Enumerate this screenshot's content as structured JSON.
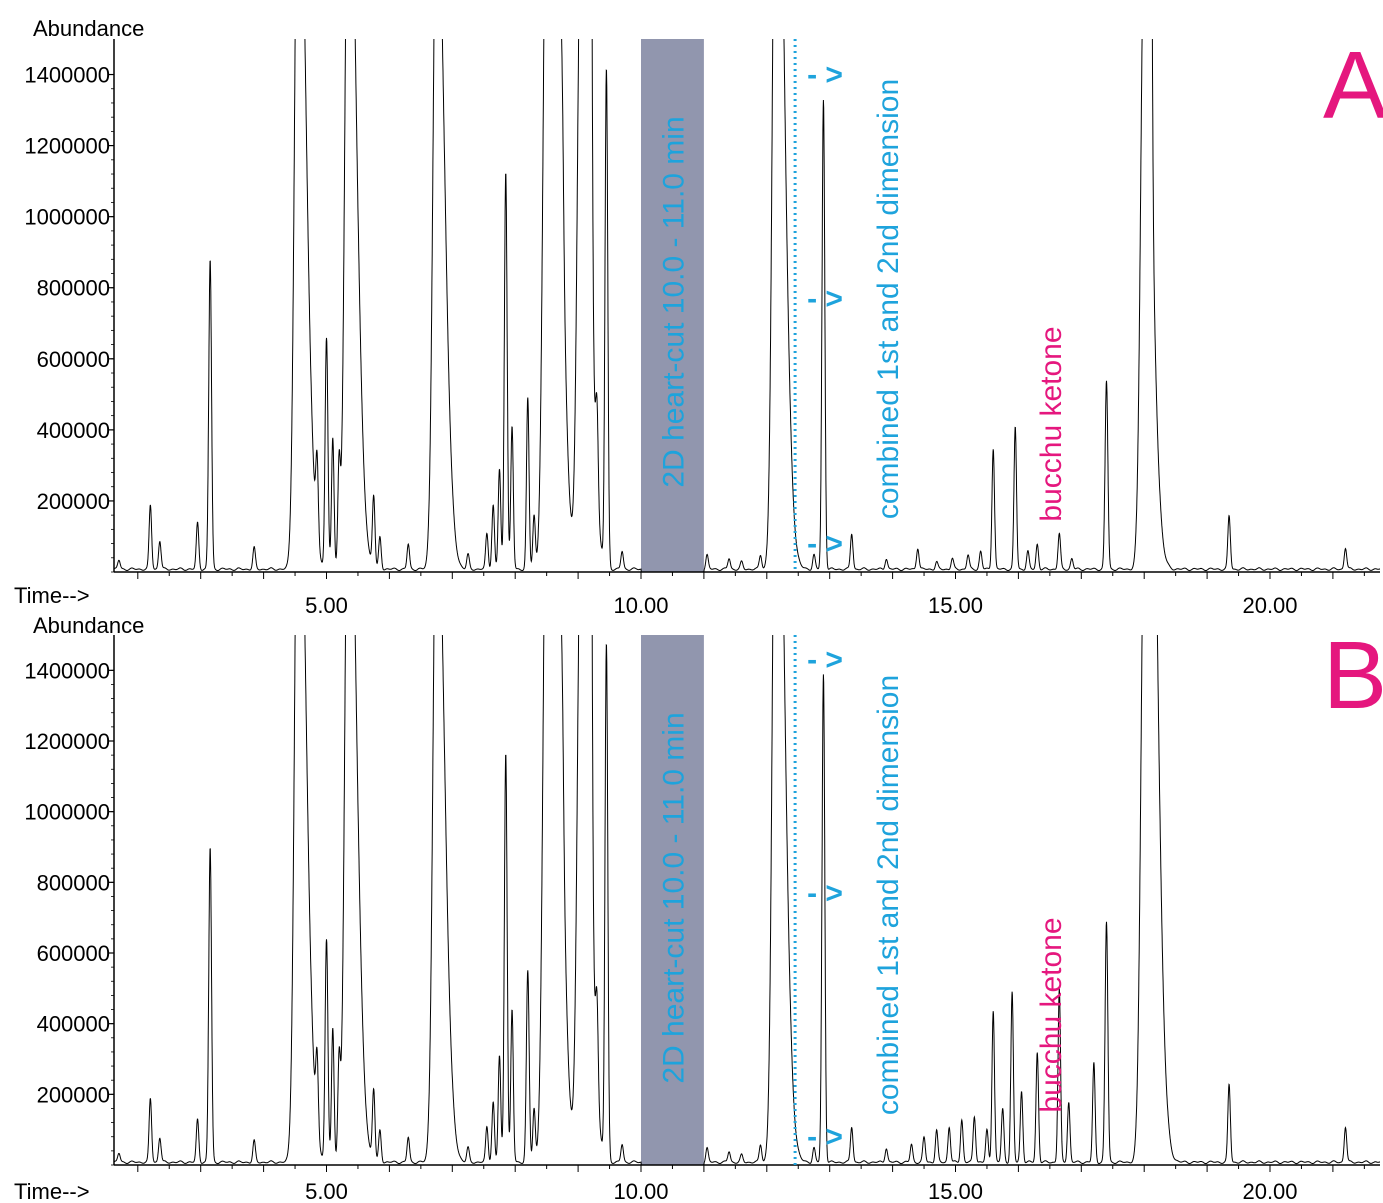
{
  "chart_data": [
    {
      "type": "line",
      "panel_label": "A",
      "ylabel": "Abundance",
      "xlabel": "Time-->",
      "xlim": [
        1.2,
        22.0
      ],
      "ylim": [
        0,
        1500000
      ],
      "yticks": [
        200000,
        400000,
        600000,
        800000,
        1000000,
        1200000,
        1400000
      ],
      "ytick_labels": [
        "200000",
        "400000",
        "600000",
        "800000",
        "1000000",
        "1200000",
        "1400000"
      ],
      "xticks": [
        5,
        10,
        15,
        20
      ],
      "xtick_labels": [
        "5.00",
        "10.00",
        "15.00",
        "20.00"
      ],
      "shaded_region": {
        "x": [
          10.0,
          11.0
        ],
        "label": "2D heart-cut 10.0 - 11.0 min",
        "color": "#9196ae"
      },
      "vline": {
        "x": 12.45,
        "label": "combined 1st and 2nd dimension",
        "color": "#1ea3dc",
        "arrow_levels": [
          1400000,
          770000,
          80000
        ],
        "arrow_glyph": "- >"
      },
      "annotation": {
        "text": "bucchu ketone",
        "x": 16.6,
        "color": "#e5177e"
      },
      "line_color": "#000000",
      "peaks": [
        [
          1.7,
          25000
        ],
        [
          2.2,
          180000
        ],
        [
          2.35,
          80000
        ],
        [
          2.95,
          130000
        ],
        [
          3.15,
          870000
        ],
        [
          3.85,
          60000
        ],
        [
          4.55,
          2200000
        ],
        [
          4.85,
          230000
        ],
        [
          5.0,
          650000
        ],
        [
          5.1,
          370000
        ],
        [
          5.2,
          280000
        ],
        [
          5.35,
          2200000
        ],
        [
          5.75,
          200000
        ],
        [
          5.85,
          90000
        ],
        [
          6.3,
          70000
        ],
        [
          6.75,
          2000000
        ],
        [
          7.25,
          40000
        ],
        [
          7.55,
          100000
        ],
        [
          7.65,
          180000
        ],
        [
          7.75,
          280000
        ],
        [
          7.85,
          1120000
        ],
        [
          7.95,
          400000
        ],
        [
          8.2,
          480000
        ],
        [
          8.3,
          150000
        ],
        [
          8.5,
          2000000
        ],
        [
          8.6,
          2000000
        ],
        [
          8.75,
          200000
        ],
        [
          9.05,
          2000000
        ],
        [
          9.2,
          1400000
        ],
        [
          9.3,
          250000
        ],
        [
          9.45,
          1400000
        ],
        [
          9.7,
          50000
        ],
        [
          11.05,
          40000
        ],
        [
          11.4,
          30000
        ],
        [
          11.6,
          20000
        ],
        [
          11.9,
          40000
        ],
        [
          12.15,
          2500000
        ],
        [
          12.75,
          40000
        ],
        [
          12.9,
          1320000
        ],
        [
          13.35,
          100000
        ],
        [
          13.9,
          30000
        ],
        [
          14.4,
          60000
        ],
        [
          14.7,
          20000
        ],
        [
          14.95,
          30000
        ],
        [
          15.2,
          40000
        ],
        [
          15.4,
          50000
        ],
        [
          15.6,
          340000
        ],
        [
          15.95,
          400000
        ],
        [
          16.15,
          50000
        ],
        [
          16.3,
          70000
        ],
        [
          16.65,
          100000
        ],
        [
          16.85,
          30000
        ],
        [
          17.4,
          530000
        ],
        [
          18.0,
          1800000
        ],
        [
          18.1,
          1180000
        ],
        [
          19.35,
          150000
        ],
        [
          21.2,
          60000
        ]
      ]
    },
    {
      "type": "line",
      "panel_label": "B",
      "ylabel": "Abundance",
      "xlabel": "Time-->",
      "xlim": [
        1.2,
        22.0
      ],
      "ylim": [
        0,
        1500000
      ],
      "yticks": [
        200000,
        400000,
        600000,
        800000,
        1000000,
        1200000,
        1400000
      ],
      "ytick_labels": [
        "200000",
        "400000",
        "600000",
        "800000",
        "1000000",
        "1200000",
        "1400000"
      ],
      "xticks": [
        5,
        10,
        15,
        20
      ],
      "xtick_labels": [
        "5.00",
        "10.00",
        "15.00",
        "20.00"
      ],
      "shaded_region": {
        "x": [
          10.0,
          11.0
        ],
        "label": "2D heart-cut 10.0 - 11.0 min",
        "color": "#9196ae"
      },
      "vline": {
        "x": 12.45,
        "label": "combined 1st and 2nd dimension",
        "color": "#1ea3dc",
        "arrow_levels": [
          1430000,
          770000,
          80000
        ],
        "arrow_glyph": "- >"
      },
      "annotation": {
        "text": "bucchu ketone",
        "x": 16.6,
        "color": "#e5177e"
      },
      "line_color": "#000000",
      "peaks": [
        [
          1.7,
          25000
        ],
        [
          2.2,
          180000
        ],
        [
          2.35,
          70000
        ],
        [
          2.95,
          120000
        ],
        [
          3.15,
          890000
        ],
        [
          3.85,
          60000
        ],
        [
          4.55,
          2200000
        ],
        [
          4.85,
          220000
        ],
        [
          5.0,
          630000
        ],
        [
          5.1,
          380000
        ],
        [
          5.2,
          270000
        ],
        [
          5.35,
          2200000
        ],
        [
          5.75,
          200000
        ],
        [
          5.85,
          90000
        ],
        [
          6.3,
          70000
        ],
        [
          6.75,
          2000000
        ],
        [
          7.25,
          40000
        ],
        [
          7.55,
          100000
        ],
        [
          7.65,
          170000
        ],
        [
          7.75,
          300000
        ],
        [
          7.85,
          1160000
        ],
        [
          7.95,
          430000
        ],
        [
          8.2,
          540000
        ],
        [
          8.3,
          150000
        ],
        [
          8.5,
          2000000
        ],
        [
          8.6,
          2000000
        ],
        [
          8.75,
          200000
        ],
        [
          9.05,
          2000000
        ],
        [
          9.2,
          1450000
        ],
        [
          9.3,
          250000
        ],
        [
          9.45,
          1460000
        ],
        [
          9.7,
          50000
        ],
        [
          11.05,
          40000
        ],
        [
          11.4,
          30000
        ],
        [
          11.6,
          20000
        ],
        [
          11.9,
          50000
        ],
        [
          12.15,
          2500000
        ],
        [
          12.75,
          40000
        ],
        [
          12.9,
          1380000
        ],
        [
          13.35,
          100000
        ],
        [
          13.9,
          40000
        ],
        [
          14.3,
          50000
        ],
        [
          14.5,
          70000
        ],
        [
          14.7,
          90000
        ],
        [
          14.9,
          100000
        ],
        [
          15.1,
          120000
        ],
        [
          15.3,
          130000
        ],
        [
          15.5,
          90000
        ],
        [
          15.6,
          430000
        ],
        [
          15.75,
          150000
        ],
        [
          15.9,
          480000
        ],
        [
          16.05,
          200000
        ],
        [
          16.3,
          310000
        ],
        [
          16.65,
          490000
        ],
        [
          16.8,
          170000
        ],
        [
          17.2,
          280000
        ],
        [
          17.4,
          680000
        ],
        [
          18.0,
          1700000
        ],
        [
          18.1,
          1700000
        ],
        [
          19.35,
          220000
        ],
        [
          21.2,
          100000
        ]
      ]
    }
  ]
}
